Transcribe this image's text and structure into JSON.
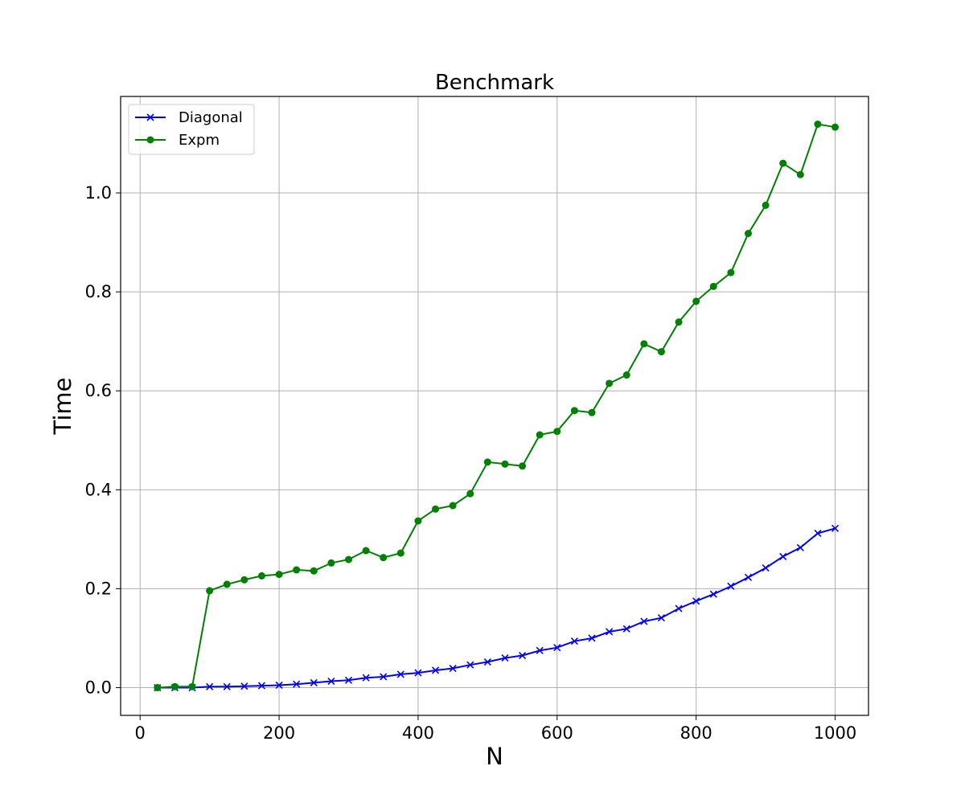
{
  "chart_data": {
    "type": "line",
    "title": "Benchmark",
    "xlabel": "N",
    "ylabel": "Time",
    "xlim": [
      -28,
      1048
    ],
    "ylim": [
      -0.056,
      1.195
    ],
    "grid": true,
    "legend_position": "top-left",
    "x_ticks": [
      0,
      200,
      400,
      600,
      800,
      1000
    ],
    "x_tick_labels": [
      "0",
      "200",
      "400",
      "600",
      "800",
      "1000"
    ],
    "y_ticks": [
      0.0,
      0.2,
      0.4,
      0.6,
      0.8,
      1.0
    ],
    "y_tick_labels": [
      "0.0",
      "0.2",
      "0.4",
      "0.6",
      "0.8",
      "1.0"
    ],
    "x": [
      25,
      50,
      75,
      100,
      125,
      150,
      175,
      200,
      225,
      250,
      275,
      300,
      325,
      350,
      375,
      400,
      425,
      450,
      475,
      500,
      525,
      550,
      575,
      600,
      625,
      650,
      675,
      700,
      725,
      750,
      775,
      800,
      825,
      850,
      875,
      900,
      925,
      950,
      975,
      1000
    ],
    "series": [
      {
        "name": "Diagonal",
        "color": "#0000ff",
        "marker": "x",
        "values": [
          0.0,
          0.0,
          0.0,
          0.002,
          0.002,
          0.003,
          0.004,
          0.005,
          0.007,
          0.01,
          0.013,
          0.015,
          0.02,
          0.022,
          0.027,
          0.03,
          0.035,
          0.039,
          0.046,
          0.052,
          0.06,
          0.065,
          0.075,
          0.081,
          0.094,
          0.1,
          0.113,
          0.119,
          0.134,
          0.141,
          0.16,
          0.175,
          0.189,
          0.205,
          0.223,
          0.242,
          0.265,
          0.283,
          0.312,
          0.322
        ]
      },
      {
        "name": "Expm",
        "color": "#008000",
        "marker": "o",
        "values": [
          0.0,
          0.002,
          0.002,
          0.196,
          0.209,
          0.218,
          0.226,
          0.229,
          0.238,
          0.236,
          0.252,
          0.259,
          0.277,
          0.263,
          0.272,
          0.337,
          0.361,
          0.368,
          0.392,
          0.456,
          0.452,
          0.448,
          0.511,
          0.518,
          0.56,
          0.556,
          0.615,
          0.632,
          0.695,
          0.679,
          0.739,
          0.781,
          0.811,
          0.839,
          0.918,
          0.975,
          1.06,
          1.037,
          1.139,
          1.133
        ]
      }
    ]
  }
}
